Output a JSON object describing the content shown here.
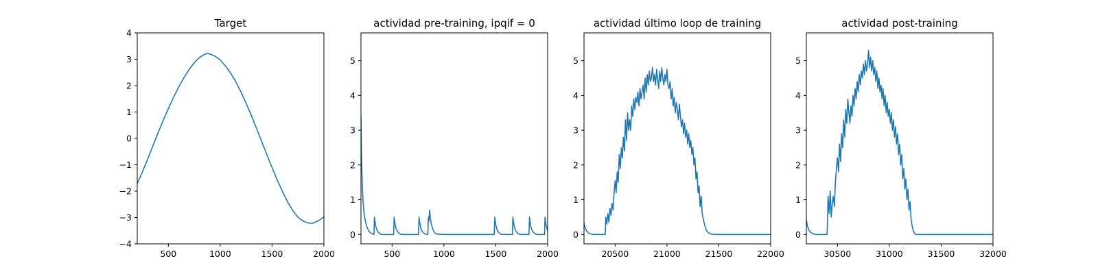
{
  "chart_data": [
    {
      "type": "line",
      "title": "Target",
      "xlabel": "",
      "ylabel": "",
      "xlim": [
        200,
        2000
      ],
      "ylim": [
        -4,
        4
      ],
      "xticks": [
        500,
        1000,
        1500,
        2000
      ],
      "yticks": [
        -4,
        -3,
        -2,
        -1,
        0,
        1,
        2,
        3,
        4
      ],
      "grid": false,
      "color": "#1f77b4",
      "series": [
        {
          "x": [
            200,
            250,
            300,
            350,
            400,
            450,
            500,
            550,
            600,
            650,
            700,
            750,
            800,
            850,
            875,
            900,
            950,
            1000,
            1050,
            1100,
            1150,
            1200,
            1250,
            1300,
            1350,
            1400,
            1450,
            1500,
            1550,
            1600,
            1650,
            1700,
            1750,
            1800,
            1850,
            1890,
            1950,
            2000
          ],
          "y": [
            -1.72,
            -1.27,
            -0.79,
            -0.29,
            0.2,
            0.68,
            1.13,
            1.56,
            1.95,
            2.3,
            2.61,
            2.87,
            3.07,
            3.19,
            3.22,
            3.2,
            3.12,
            2.97,
            2.75,
            2.48,
            2.15,
            1.76,
            1.33,
            0.87,
            0.38,
            -0.12,
            -0.62,
            -1.11,
            -1.58,
            -2.01,
            -2.41,
            -2.74,
            -2.99,
            -3.14,
            -3.21,
            -3.22,
            -3.12,
            -2.98
          ]
        }
      ]
    },
    {
      "type": "line",
      "title": "actividad pre-training, ipqif = 0",
      "xlabel": "",
      "ylabel": "",
      "xlim": [
        200,
        2000
      ],
      "ylim": [
        -0.27,
        5.8
      ],
      "xticks": [
        500,
        1000,
        1500,
        2000
      ],
      "yticks": [
        0,
        1,
        2,
        3,
        4,
        5
      ],
      "grid": false,
      "color": "#1f77b4",
      "series": [
        {
          "x": [
            200,
            205,
            212,
            220,
            230,
            245,
            262,
            280,
            300,
            325,
            330,
            335,
            342,
            350,
            360,
            375,
            390,
            410,
            450,
            515,
            520,
            525,
            532,
            540,
            550,
            565,
            580,
            600,
            700,
            755,
            760,
            765,
            772,
            780,
            790,
            805,
            820,
            835,
            845,
            850,
            855,
            862,
            870,
            880,
            895,
            910,
            930,
            1000,
            1100,
            1200,
            1300,
            1400,
            1485,
            1490,
            1495,
            1502,
            1510,
            1520,
            1535,
            1550,
            1570,
            1660,
            1665,
            1670,
            1677,
            1685,
            1695,
            1710,
            1725,
            1745,
            1820,
            1825,
            1830,
            1837,
            1845,
            1855,
            1870,
            1885,
            1905,
            1970,
            1975,
            1980,
            1987,
            1995,
            2000
          ],
          "y": [
            3.4,
            2.3,
            1.5,
            0.95,
            0.6,
            0.35,
            0.18,
            0.08,
            0.03,
            0.0,
            0.5,
            0.38,
            0.25,
            0.16,
            0.09,
            0.04,
            0.01,
            0.0,
            0.0,
            0.0,
            0.5,
            0.38,
            0.25,
            0.16,
            0.09,
            0.04,
            0.01,
            0.0,
            0.0,
            0.0,
            0.5,
            0.38,
            0.25,
            0.16,
            0.09,
            0.04,
            0.01,
            0.0,
            0.0,
            0.5,
            0.38,
            0.7,
            0.45,
            0.28,
            0.14,
            0.05,
            0.01,
            0.0,
            0.0,
            0.0,
            0.0,
            0.0,
            0.0,
            0.5,
            0.38,
            0.25,
            0.16,
            0.09,
            0.04,
            0.01,
            0.0,
            0.0,
            0.5,
            0.38,
            0.25,
            0.16,
            0.09,
            0.04,
            0.01,
            0.0,
            0.0,
            0.5,
            0.38,
            0.25,
            0.16,
            0.09,
            0.04,
            0.01,
            0.0,
            0.0,
            0.5,
            0.38,
            0.25,
            0.16,
            0.1
          ]
        }
      ]
    },
    {
      "type": "line",
      "title": "actividad último loop de training",
      "xlabel": "",
      "ylabel": "",
      "xlim": [
        20200,
        22000
      ],
      "ylim": [
        -0.27,
        5.8
      ],
      "xticks": [
        20500,
        21000,
        21500,
        22000
      ],
      "yticks": [
        0,
        1,
        2,
        3,
        4,
        5
      ],
      "grid": false,
      "color": "#1f77b4",
      "series": [
        {
          "x": [
            20200,
            20210,
            20225,
            20245,
            20270,
            20300,
            20330,
            20370,
            20405,
            20410,
            20420,
            20430,
            20440,
            20450,
            20460,
            20470,
            20480,
            20490,
            20500,
            20510,
            20520,
            20530,
            20540,
            20550,
            20560,
            20570,
            20580,
            20590,
            20600,
            20610,
            20620,
            20630,
            20640,
            20650,
            20660,
            20670,
            20680,
            20690,
            20700,
            20710,
            20720,
            20730,
            20740,
            20750,
            20760,
            20770,
            20780,
            20790,
            20800,
            20810,
            20820,
            20830,
            20840,
            20850,
            20860,
            20870,
            20880,
            20890,
            20900,
            20910,
            20920,
            20930,
            20940,
            20950,
            20960,
            20970,
            20980,
            20990,
            21000,
            21010,
            21020,
            21030,
            21040,
            21050,
            21060,
            21070,
            21080,
            21090,
            21100,
            21110,
            21120,
            21130,
            21140,
            21150,
            21160,
            21170,
            21180,
            21190,
            21200,
            21210,
            21220,
            21230,
            21240,
            21250,
            21260,
            21270,
            21280,
            21290,
            21300,
            21310,
            21320,
            21330,
            21340,
            21350,
            21365,
            21380,
            21400,
            21430,
            21470,
            21550,
            21700,
            21850,
            22000
          ],
          "y": [
            0.32,
            0.2,
            0.1,
            0.04,
            0.01,
            0.0,
            0.0,
            0.0,
            0.0,
            0.5,
            0.3,
            0.6,
            0.35,
            0.75,
            0.55,
            0.9,
            0.7,
            1.2,
            1.55,
            1.2,
            1.8,
            1.5,
            2.3,
            1.9,
            2.5,
            2.2,
            2.8,
            2.4,
            3.3,
            2.7,
            3.5,
            3.0,
            3.3,
            3.0,
            3.7,
            3.4,
            3.9,
            3.6,
            3.95,
            3.8,
            4.1,
            3.7,
            4.2,
            3.9,
            4.1,
            4.3,
            3.9,
            4.5,
            4.1,
            4.6,
            4.3,
            4.7,
            4.4,
            4.5,
            4.8,
            4.4,
            4.6,
            4.3,
            4.75,
            4.5,
            4.2,
            4.7,
            4.4,
            4.8,
            4.5,
            4.3,
            4.6,
            4.4,
            4.75,
            4.3,
            4.2,
            4.4,
            3.9,
            4.2,
            3.7,
            3.95,
            3.5,
            3.8,
            3.6,
            3.3,
            3.75,
            3.4,
            3.1,
            3.3,
            2.9,
            3.2,
            2.8,
            3.0,
            2.6,
            2.9,
            2.5,
            2.7,
            2.3,
            2.5,
            2.0,
            2.2,
            1.6,
            1.8,
            1.2,
            1.4,
            0.8,
            1.1,
            0.6,
            0.45,
            0.25,
            0.12,
            0.05,
            0.01,
            0.0,
            0.0,
            0.0,
            0.0,
            0.0
          ]
        }
      ]
    },
    {
      "type": "line",
      "title": "actividad post-training",
      "xlabel": "",
      "ylabel": "",
      "xlim": [
        30200,
        32000
      ],
      "ylim": [
        -0.27,
        5.8
      ],
      "xticks": [
        30500,
        31000,
        31500,
        32000
      ],
      "yticks": [
        0,
        1,
        2,
        3,
        4,
        5
      ],
      "grid": false,
      "color": "#1f77b4",
      "series": [
        {
          "x": [
            30200,
            30210,
            30225,
            30245,
            30270,
            30300,
            30330,
            30370,
            30400,
            30410,
            30420,
            30430,
            30440,
            30450,
            30460,
            30470,
            30480,
            30490,
            30500,
            30510,
            30520,
            30530,
            30540,
            30550,
            30560,
            30570,
            30580,
            30590,
            30600,
            30610,
            30620,
            30630,
            30640,
            30650,
            30660,
            30670,
            30680,
            30690,
            30700,
            30710,
            30720,
            30730,
            30740,
            30750,
            30760,
            30770,
            30780,
            30790,
            30800,
            30810,
            30820,
            30830,
            30840,
            30850,
            30860,
            30870,
            30880,
            30890,
            30900,
            30910,
            30920,
            30930,
            30940,
            30950,
            30960,
            30970,
            30980,
            30990,
            31000,
            31010,
            31020,
            31030,
            31040,
            31050,
            31060,
            31070,
            31080,
            31090,
            31100,
            31110,
            31120,
            31130,
            31140,
            31150,
            31160,
            31170,
            31180,
            31190,
            31200,
            31210,
            31220,
            31230,
            31240,
            31250,
            31260,
            31270,
            31280,
            31290,
            31300,
            31315,
            31330,
            31350,
            31380,
            31420,
            31500,
            31700,
            31850,
            32000
          ],
          "y": [
            0.42,
            0.25,
            0.12,
            0.05,
            0.01,
            0.0,
            0.0,
            0.0,
            0.0,
            1.1,
            0.6,
            1.25,
            0.5,
            0.9,
            1.1,
            0.8,
            1.5,
            1.9,
            2.2,
            1.8,
            2.6,
            2.1,
            2.9,
            2.5,
            3.3,
            2.8,
            3.6,
            3.2,
            3.9,
            3.5,
            3.2,
            3.7,
            3.4,
            4.0,
            3.7,
            4.2,
            3.9,
            4.4,
            4.1,
            4.6,
            4.3,
            4.7,
            4.5,
            4.9,
            4.6,
            5.0,
            4.7,
            4.9,
            5.3,
            4.8,
            5.1,
            4.7,
            5.0,
            4.6,
            4.8,
            4.4,
            4.7,
            4.2,
            4.5,
            4.1,
            4.3,
            3.9,
            4.2,
            3.7,
            4.0,
            3.5,
            3.8,
            3.4,
            3.6,
            3.2,
            3.5,
            3.0,
            3.3,
            2.8,
            3.1,
            2.6,
            2.9,
            2.3,
            2.6,
            2.0,
            2.3,
            1.6,
            1.9,
            1.3,
            1.6,
            1.0,
            1.3,
            0.7,
            0.95,
            0.45,
            0.25,
            0.12,
            0.05,
            0.01,
            0.0,
            0.0,
            0.0,
            0.0,
            0.0,
            0.0,
            0.0,
            0.0,
            0.0,
            0.0,
            0.0,
            0.0,
            0.0,
            0.0
          ]
        }
      ]
    }
  ]
}
